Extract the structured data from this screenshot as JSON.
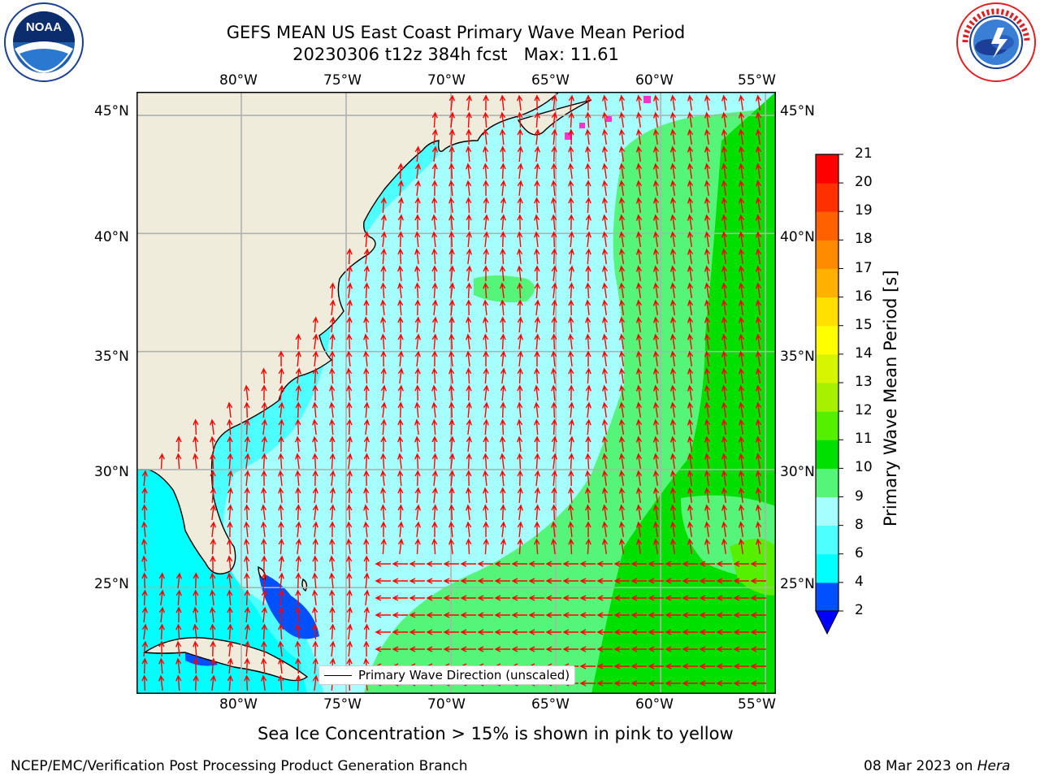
{
  "title": {
    "line1": "GEFS MEAN US East Coast Primary Wave Mean Period",
    "line2": "20230306 t12z 384h fcst   Max: 11.61"
  },
  "axes": {
    "lon_ticks": [
      "80°W",
      "75°W",
      "70°W",
      "65°W",
      "60°W",
      "55°W"
    ],
    "lat_ticks": [
      "45°N",
      "40°N",
      "35°N",
      "30°N",
      "25°N"
    ],
    "lon_range": [
      -85,
      -54.5
    ],
    "lat_range": [
      20.5,
      46
    ]
  },
  "legend": {
    "label": "Primary Wave Direction (unscaled)"
  },
  "colorbar": {
    "label": "Primary Wave Mean Period [s]",
    "ticks": [
      "21",
      "20",
      "19",
      "18",
      "17",
      "16",
      "15",
      "14",
      "13",
      "12",
      "11",
      "10",
      "9",
      "8",
      "6",
      "4",
      "2"
    ],
    "colors": [
      "#0050ff",
      "#00ffff",
      "#4dffff",
      "#a6ffff",
      "#55f57a",
      "#00e000",
      "#55f000",
      "#a6f000",
      "#d6f500",
      "#ffff00",
      "#ffe000",
      "#ffb000",
      "#ff8c00",
      "#ff6000",
      "#ff3000",
      "#ff0000"
    ],
    "extend_color": "#0000ff"
  },
  "caption": "Sea Ice Concentration > 15% is shown in pink to yellow",
  "footer": {
    "left": "NCEP/EMC/Verification Post Processing Product Generation Branch",
    "right_date": "08 Mar 2023 on ",
    "right_machine": "Hera"
  },
  "logos": {
    "left_icon": "noaa-logo-icon",
    "left_text": "NOAA",
    "right_icon": "nws-logo-icon",
    "right_text": "NATIONAL WEATHER SERVICE"
  },
  "colors": {
    "land": "#efecdc",
    "grid": "#b0b0b0",
    "arrow": "#ff0000"
  }
}
